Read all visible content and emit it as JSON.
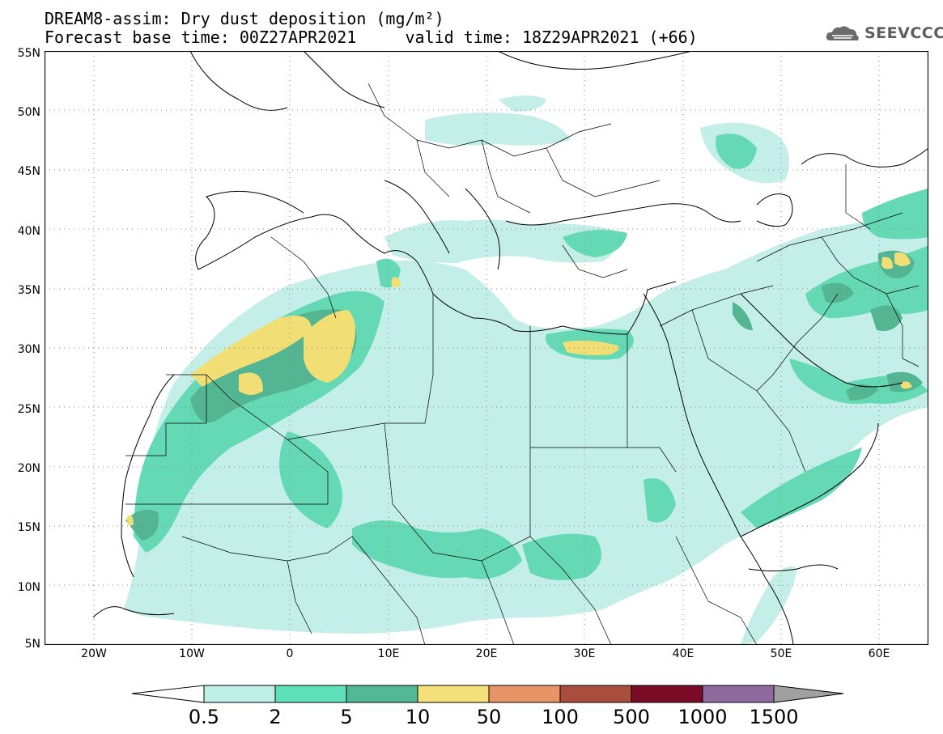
{
  "header": {
    "title_line1": "DREAM8-assim: Dry dust deposition (mg/m²)",
    "title_line2": "Forecast base time: 00Z27APR2021     valid time: 18Z29APR2021 (+66)"
  },
  "logo": {
    "text": "SEEVCCC",
    "icon": "cloud-icon"
  },
  "map": {
    "lat_labels": [
      "55N",
      "50N",
      "45N",
      "40N",
      "35N",
      "30N",
      "25N",
      "20N",
      "15N",
      "10N",
      "5N"
    ],
    "lon_labels": [
      "20W",
      "10W",
      "0",
      "10E",
      "20E",
      "30E",
      "40E",
      "50E",
      "60E"
    ],
    "lat_range": [
      5,
      55
    ],
    "lon_range": [
      -25,
      65
    ],
    "grid": "dotted"
  },
  "colorbar": {
    "labels": [
      "0.5",
      "2",
      "5",
      "10",
      "50",
      "100",
      "500",
      "1000",
      "1500"
    ],
    "colors": [
      "#bfeee6",
      "#5ee0b8",
      "#52b896",
      "#f3e07a",
      "#e99466",
      "#a94d3f",
      "#7a0a26",
      "#8f6a9e"
    ],
    "end_color": "#a0a0a0"
  },
  "field_colors": {
    "light": "#c4efe8",
    "mid": "#64d9b4",
    "dark": "#54b593",
    "yellow": "#f1df76"
  }
}
